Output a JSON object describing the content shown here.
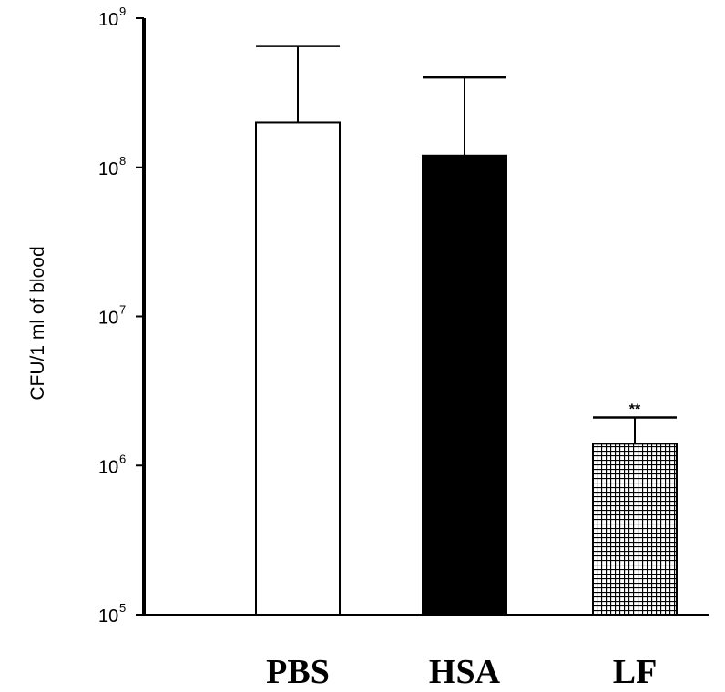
{
  "chart_data": {
    "type": "bar",
    "ylabel": "CFU/1 ml of blood",
    "xlabel": "",
    "title": "",
    "y_scale": "log",
    "ylim": [
      100000,
      1000000000
    ],
    "y_ticks": [
      {
        "base": "10",
        "exp": "5",
        "value": 100000
      },
      {
        "base": "10",
        "exp": "6",
        "value": 1000000
      },
      {
        "base": "10",
        "exp": "7",
        "value": 10000000
      },
      {
        "base": "10",
        "exp": "8",
        "value": 100000000
      },
      {
        "base": "10",
        "exp": "9",
        "value": 1000000000
      }
    ],
    "categories": [
      "PBS",
      "HSA",
      "LF"
    ],
    "values": [
      200000000,
      120000000,
      1400000
    ],
    "error_upper": [
      650000000,
      400000000,
      2100000
    ],
    "fills": [
      "white",
      "black",
      "crosshatch"
    ],
    "annotations": [
      {
        "category": "LF",
        "text": "**"
      }
    ],
    "grid": false,
    "legend": "none"
  }
}
